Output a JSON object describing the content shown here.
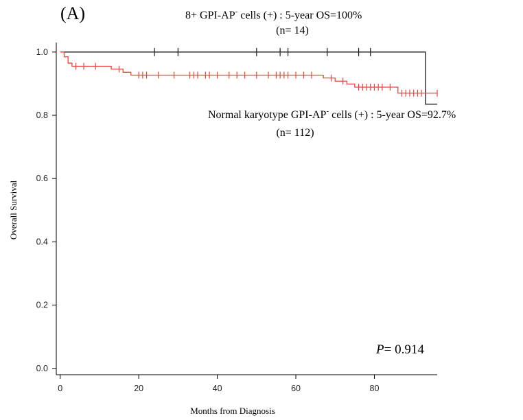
{
  "chart_data": {
    "type": "line",
    "panel_label": "(A)",
    "xlabel": "Months from Diagnosis",
    "ylabel": "Overall Survival",
    "xlim": [
      -1,
      96
    ],
    "ylim": [
      -0.02,
      1.03
    ],
    "x_ticks": [
      0,
      20,
      40,
      60,
      80
    ],
    "y_ticks": [
      "0.0",
      "0.2",
      "0.4",
      "0.6",
      "0.8",
      "1.0"
    ],
    "p_value_label": "P",
    "p_value_text": "= 0.914",
    "series": [
      {
        "key": "gpi_8plus",
        "color": "#1a1a1a",
        "label_main": "8+ GPI-AP",
        "label_sup": "-",
        "label_rest": " cells (+) : 5-year OS=100%",
        "label_n": "(n= 14)",
        "steps": [
          [
            0,
            1.0
          ],
          [
            93,
            1.0
          ],
          [
            93,
            0.835
          ],
          [
            96,
            0.835
          ]
        ],
        "censored": [
          [
            24,
            1.0
          ],
          [
            30,
            1.0
          ],
          [
            50,
            1.0
          ],
          [
            56,
            1.0
          ],
          [
            58,
            1.0
          ],
          [
            68,
            1.0
          ],
          [
            76,
            1.0
          ],
          [
            79,
            1.0
          ]
        ]
      },
      {
        "key": "normal_karyotype",
        "color": "#e8453c",
        "label_main": "Normal karyotype  GPI-AP",
        "label_sup": "-",
        "label_rest": " cells (+) : 5-year OS=92.7%",
        "label_n": "(n= 112)",
        "steps": [
          [
            0,
            1.0
          ],
          [
            1,
            1.0
          ],
          [
            1,
            0.985
          ],
          [
            2,
            0.985
          ],
          [
            2,
            0.965
          ],
          [
            3,
            0.965
          ],
          [
            3,
            0.955
          ],
          [
            13,
            0.955
          ],
          [
            13,
            0.946
          ],
          [
            16,
            0.946
          ],
          [
            16,
            0.936
          ],
          [
            18,
            0.936
          ],
          [
            18,
            0.927
          ],
          [
            67,
            0.927
          ],
          [
            67,
            0.918
          ],
          [
            70,
            0.918
          ],
          [
            70,
            0.908
          ],
          [
            73,
            0.908
          ],
          [
            73,
            0.899
          ],
          [
            75,
            0.899
          ],
          [
            75,
            0.889
          ],
          [
            86,
            0.889
          ],
          [
            86,
            0.87
          ],
          [
            96,
            0.87
          ]
        ],
        "censored": [
          [
            4,
            0.955
          ],
          [
            6,
            0.955
          ],
          [
            9,
            0.955
          ],
          [
            15,
            0.946
          ],
          [
            20,
            0.927
          ],
          [
            21,
            0.927
          ],
          [
            22,
            0.927
          ],
          [
            25,
            0.927
          ],
          [
            29,
            0.927
          ],
          [
            33,
            0.927
          ],
          [
            34,
            0.927
          ],
          [
            35,
            0.927
          ],
          [
            37,
            0.927
          ],
          [
            38,
            0.927
          ],
          [
            40,
            0.927
          ],
          [
            43,
            0.927
          ],
          [
            45,
            0.927
          ],
          [
            47,
            0.927
          ],
          [
            50,
            0.927
          ],
          [
            53,
            0.927
          ],
          [
            55,
            0.927
          ],
          [
            56,
            0.927
          ],
          [
            57,
            0.927
          ],
          [
            58,
            0.927
          ],
          [
            60,
            0.927
          ],
          [
            62,
            0.927
          ],
          [
            64,
            0.927
          ],
          [
            69,
            0.918
          ],
          [
            72,
            0.908
          ],
          [
            76,
            0.889
          ],
          [
            77,
            0.889
          ],
          [
            78,
            0.889
          ],
          [
            79,
            0.889
          ],
          [
            80,
            0.889
          ],
          [
            81,
            0.889
          ],
          [
            82,
            0.889
          ],
          [
            84,
            0.889
          ],
          [
            87,
            0.87
          ],
          [
            88,
            0.87
          ],
          [
            89,
            0.87
          ],
          [
            90,
            0.87
          ],
          [
            91,
            0.87
          ],
          [
            92,
            0.87
          ],
          [
            96,
            0.87
          ]
        ]
      }
    ]
  }
}
